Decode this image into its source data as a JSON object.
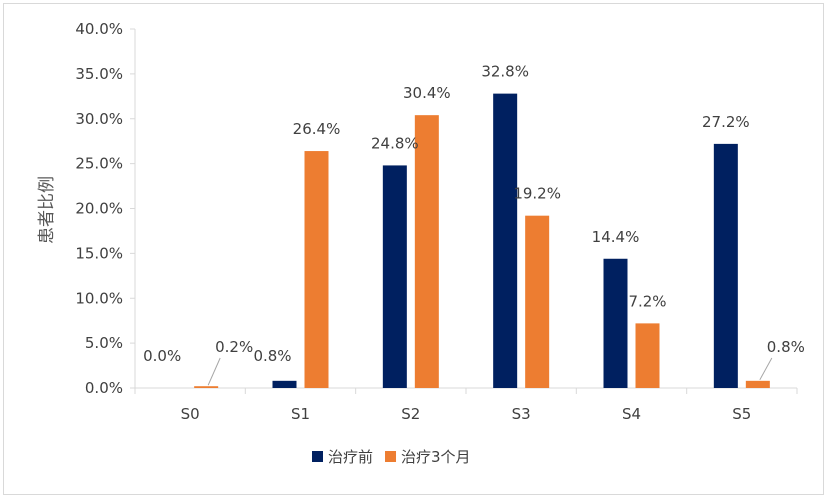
{
  "chart_data": {
    "type": "bar",
    "title": "",
    "xlabel": "",
    "ylabel": "患者比例",
    "ylim": [
      0,
      40
    ],
    "ytick_values": [
      0,
      5,
      10,
      15,
      20,
      25,
      30,
      35,
      40
    ],
    "ytick_labels": [
      "0.0%",
      "5.0%",
      "10.0%",
      "15.0%",
      "20.0%",
      "25.0%",
      "30.0%",
      "35.0%",
      "40.0%"
    ],
    "categories": [
      "S0",
      "S1",
      "S2",
      "S3",
      "S4",
      "S5"
    ],
    "series": [
      {
        "name": "治疗前",
        "color": "#002060",
        "values": [
          0.0,
          0.8,
          24.8,
          32.8,
          14.4,
          27.2
        ],
        "labels": [
          "0.0%",
          "0.8%",
          "24.8%",
          "32.8%",
          "14.4%",
          "27.2%"
        ]
      },
      {
        "name": "治疗3个月",
        "color": "#ed7d31",
        "values": [
          0.2,
          26.4,
          30.4,
          19.2,
          7.2,
          0.8
        ],
        "labels": [
          "0.2%",
          "26.4%",
          "30.4%",
          "19.2%",
          "7.2%",
          "0.8%"
        ]
      }
    ],
    "grid": false,
    "legend_position": "bottom"
  }
}
